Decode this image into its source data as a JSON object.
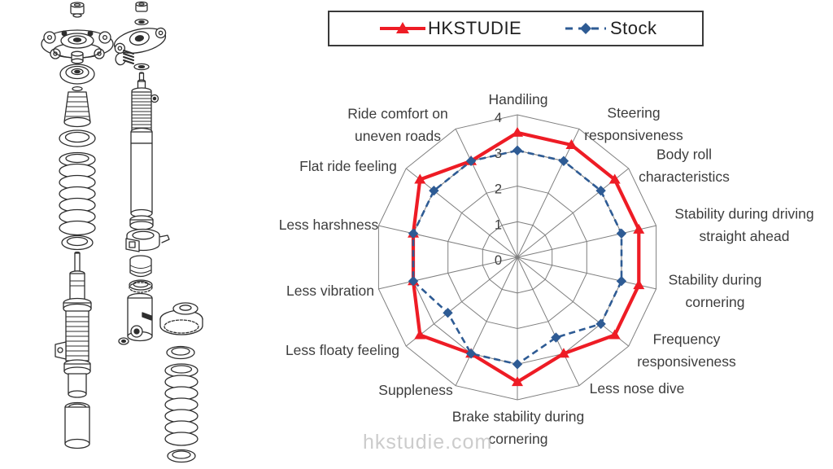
{
  "watermark": "hkstudie.com",
  "chart_data": {
    "type": "radar",
    "title": "",
    "rmax": 4,
    "ticks": [
      0,
      1,
      2,
      3,
      4
    ],
    "grid_color": "#7f7f7f",
    "label_color": "#3d3d3d",
    "legend_position": "top",
    "categories": [
      [
        "Handiling"
      ],
      [
        "Steering",
        "responsiveness"
      ],
      [
        "Body roll",
        "characteristics"
      ],
      [
        "Stability during driving",
        "straight ahead"
      ],
      [
        "Stability during",
        "cornering"
      ],
      [
        "Frequency",
        "responsiveness"
      ],
      [
        "Less nose dive"
      ],
      [
        "Brake stability during",
        "cornering"
      ],
      [
        "Suppleness"
      ],
      [
        "Less floaty feeling"
      ],
      [
        "Less vibration"
      ],
      [
        "Less harshness"
      ],
      [
        "Flat ride feeling"
      ],
      [
        "Ride comfort on",
        "uneven roads"
      ]
    ],
    "series": [
      {
        "name": "HKSTUDIE",
        "color": "#ee1c25",
        "line": "solid",
        "marker": "triangle",
        "values": [
          3.5,
          3.5,
          3.5,
          3.5,
          3.5,
          3.5,
          3,
          3.5,
          3,
          3.5,
          3,
          3,
          3.5,
          3
        ]
      },
      {
        "name": "Stock",
        "color": "#2e5b94",
        "line": "dashed",
        "marker": "diamond",
        "values": [
          3,
          3,
          3,
          3,
          3,
          3,
          2.5,
          3,
          3,
          2.5,
          3,
          3,
          3,
          3
        ]
      }
    ]
  }
}
